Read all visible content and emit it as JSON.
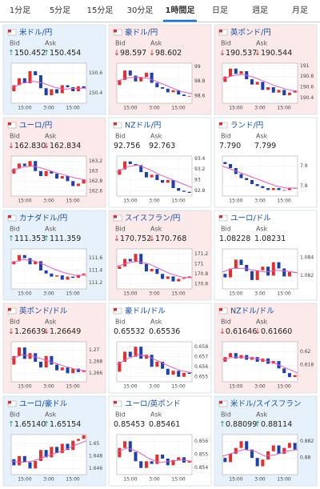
{
  "tabs": {
    "items": [
      "1分足",
      "5分足",
      "15分足",
      "30分足",
      "1時間足",
      "日足",
      "週足",
      "月足"
    ],
    "active": 4
  },
  "labels": {
    "bid": "Bid",
    "ask": "Ask"
  },
  "cards": [
    {
      "name": "米ドル/円",
      "trend": "up",
      "arrow": "↑",
      "bid": "150.452",
      "ask": "150.454",
      "chart": {
        "ylim": [
          150.3,
          150.7
        ],
        "yticks": [
          150.6,
          150.4
        ],
        "xticks": [
          "15:00",
          "3:00",
          "15:00"
        ],
        "closes": [
          150.42,
          150.48,
          150.55,
          150.5,
          150.62,
          150.58,
          150.45,
          150.38,
          150.44,
          150.4,
          150.48,
          150.46,
          150.42,
          150.47,
          150.45
        ],
        "ma": [
          150.45,
          150.5,
          150.52,
          150.5,
          150.46,
          150.44,
          150.45,
          150.45
        ]
      }
    },
    {
      "name": "豪ドル/円",
      "trend": "down",
      "arrow": "↓",
      "bid": "98.597",
      "ask": "98.602",
      "chart": {
        "ylim": [
          98.5,
          99.05
        ],
        "yticks": [
          99,
          98.8,
          98.6
        ],
        "xticks": [
          "15:00",
          "3:00",
          "15:00"
        ],
        "closes": [
          98.75,
          98.82,
          98.95,
          98.88,
          98.8,
          98.86,
          98.92,
          98.78,
          98.72,
          98.7,
          98.65,
          98.68,
          98.62,
          98.6,
          98.6
        ],
        "ma": [
          98.8,
          98.85,
          98.86,
          98.84,
          98.78,
          98.72,
          98.66,
          98.63
        ]
      }
    },
    {
      "name": "英ポンド/円",
      "trend": "down",
      "arrow": "↓",
      "bid": "190.537",
      "ask": "190.544",
      "chart": {
        "ylim": [
          190.3,
          191.05
        ],
        "yticks": [
          191,
          190.8,
          190.6,
          190.4
        ],
        "xticks": [
          "15:00",
          "3:00",
          "15:00"
        ],
        "closes": [
          190.7,
          190.8,
          190.95,
          190.85,
          190.9,
          190.75,
          190.65,
          190.7,
          190.55,
          190.6,
          190.5,
          190.55,
          190.45,
          190.5,
          190.54
        ],
        "ma": [
          190.75,
          190.82,
          190.84,
          190.78,
          190.7,
          190.62,
          190.56,
          190.52
        ]
      }
    },
    {
      "name": "ユーロ/円",
      "trend": "down",
      "arrow": "↓",
      "bid": "162.830",
      "ask": "162.834",
      "chart": {
        "ylim": [
          162.5,
          163.3
        ],
        "yticks": [
          163.2,
          163,
          162.8,
          162.6
        ],
        "xticks": [
          "15:00",
          "3:00",
          "15:00"
        ],
        "closes": [
          162.95,
          163.05,
          163.15,
          163.1,
          163.2,
          163.0,
          162.9,
          163.0,
          162.95,
          162.85,
          162.9,
          162.8,
          162.7,
          162.75,
          162.83
        ],
        "ma": [
          163.0,
          163.08,
          163.1,
          163.05,
          162.98,
          162.92,
          162.86,
          162.82
        ]
      }
    },
    {
      "name": "NZドル/円",
      "trend": "flat",
      "bid": "92.756",
      "ask": "92.763",
      "chart": {
        "ylim": [
          92.7,
          93.45
        ],
        "yticks": [
          93.4,
          93.2,
          93,
          92.8
        ],
        "xticks": [
          "15:00",
          "3:00",
          "15:00"
        ],
        "closes": [
          93.1,
          93.2,
          93.35,
          93.3,
          93.28,
          93.15,
          93.05,
          93.1,
          93.0,
          92.95,
          93.0,
          92.85,
          92.8,
          92.78,
          92.76
        ],
        "ma": [
          93.15,
          93.25,
          93.28,
          93.2,
          93.1,
          93.02,
          92.94,
          92.86
        ]
      }
    },
    {
      "name": "ランド/円",
      "trend": "flat",
      "bid": "7.790",
      "ask": "7.799",
      "chart": {
        "ylim": [
          7.75,
          7.95
        ],
        "yticks": [
          7.9,
          7.8
        ],
        "xticks": [
          "15:00",
          "3:00",
          "15:00"
        ],
        "closes": [
          7.92,
          7.91,
          7.89,
          7.86,
          7.84,
          7.83,
          7.81,
          7.8,
          7.79,
          7.78,
          7.79,
          7.78,
          7.78,
          7.79,
          7.79
        ],
        "ma": [
          7.9,
          7.88,
          7.86,
          7.84,
          7.82,
          7.8,
          7.79,
          7.79
        ]
      }
    },
    {
      "name": "カナダドル/円",
      "trend": "up",
      "arrow": "↑",
      "bid": "111.353",
      "ask": "111.359",
      "chart": {
        "ylim": [
          111.1,
          111.75
        ],
        "yticks": [
          111.6,
          111.4,
          111.2
        ],
        "xticks": [
          "15:00",
          "3:00",
          "15:00"
        ],
        "closes": [
          111.5,
          111.55,
          111.65,
          111.6,
          111.5,
          111.55,
          111.4,
          111.35,
          111.3,
          111.32,
          111.25,
          111.3,
          111.28,
          111.33,
          111.35
        ],
        "ma": [
          111.52,
          111.58,
          111.56,
          111.5,
          111.42,
          111.36,
          111.32,
          111.32
        ]
      }
    },
    {
      "name": "スイスフラン/円",
      "trend": "down",
      "arrow": "↓",
      "bid": "170.752",
      "ask": "170.768",
      "chart": {
        "ylim": [
          170.5,
          171.3
        ],
        "yticks": [
          171.2,
          171,
          170.8,
          170.6
        ],
        "xticks": [
          "15:00",
          "3:00",
          "15:00"
        ],
        "closes": [
          170.9,
          170.95,
          171.1,
          171.05,
          171.2,
          171.0,
          170.85,
          170.9,
          170.8,
          170.7,
          170.75,
          170.65,
          170.7,
          170.72,
          170.75
        ],
        "ma": [
          170.95,
          171.02,
          171.05,
          171.0,
          170.9,
          170.8,
          170.74,
          170.72
        ]
      }
    },
    {
      "name": "ユーロ/ドル",
      "trend": "flat",
      "bid": "1.08228",
      "ask": "1.08231",
      "chart": {
        "ylim": [
          1.0805,
          1.085
        ],
        "yticks": [
          1.084,
          1.082
        ],
        "xticks": [
          "15:00",
          "3:00",
          "15:00"
        ],
        "closes": [
          1.0822,
          1.0818,
          1.0828,
          1.0838,
          1.0832,
          1.0825,
          1.0815,
          1.0826,
          1.083,
          1.082,
          1.0835,
          1.0828,
          1.0819,
          1.0824,
          1.0823
        ],
        "ma": [
          1.0824,
          1.0828,
          1.0828,
          1.0826,
          1.0824,
          1.0826,
          1.0825,
          1.0823
        ]
      }
    },
    {
      "name": "英ポンド/ドル",
      "trend": "down",
      "arrow": "↓",
      "bid": "1.26639",
      "ask": "1.26649",
      "chart": {
        "ylim": [
          1.2645,
          1.2715
        ],
        "yticks": [
          1.27,
          1.268,
          1.266
        ],
        "xticks": [
          "15:00",
          "3:00",
          "15:00"
        ],
        "closes": [
          1.2675,
          1.269,
          1.2705,
          1.2685,
          1.2695,
          1.268,
          1.267,
          1.269,
          1.2675,
          1.2665,
          1.267,
          1.266,
          1.2668,
          1.2662,
          1.2664
        ],
        "ma": [
          1.2685,
          1.2692,
          1.269,
          1.2684,
          1.2678,
          1.2672,
          1.2667,
          1.2664
        ]
      }
    },
    {
      "name": "豪ドル/ドル",
      "trend": "flat",
      "bid": "0.65532",
      "ask": "0.65536",
      "chart": {
        "ylim": [
          0.6545,
          0.6585
        ],
        "yticks": [
          0.658,
          0.657,
          0.656,
          0.655
        ],
        "xticks": [
          "15:00",
          "3:00",
          "15:00"
        ],
        "closes": [
          0.6555,
          0.6565,
          0.6575,
          0.657,
          0.658,
          0.6568,
          0.6572,
          0.656,
          0.6565,
          0.6558,
          0.6552,
          0.6556,
          0.655,
          0.6554,
          0.6553
        ],
        "ma": [
          0.6562,
          0.6568,
          0.6572,
          0.657,
          0.6565,
          0.656,
          0.6556,
          0.6554
        ]
      }
    },
    {
      "name": "NZドル/ドル",
      "trend": "down",
      "arrow": "↓",
      "bid": "0.61646",
      "ask": "0.61660",
      "chart": {
        "ylim": [
          0.6155,
          0.6215
        ],
        "yticks": [
          0.62,
          0.618
        ],
        "xticks": [
          "15:00",
          "3:00",
          "15:00"
        ],
        "closes": [
          0.6185,
          0.6192,
          0.6198,
          0.619,
          0.6195,
          0.6188,
          0.6192,
          0.6185,
          0.619,
          0.6182,
          0.6186,
          0.6175,
          0.6168,
          0.6162,
          0.6165
        ],
        "ma": [
          0.6188,
          0.6192,
          0.6192,
          0.619,
          0.6187,
          0.6182,
          0.6175,
          0.6168
        ]
      }
    },
    {
      "name": "ユーロ/豪ドル",
      "trend": "up",
      "arrow": "↑",
      "bid": "1.65140",
      "ask": "1.65154",
      "chart": {
        "ylim": [
          1.645,
          1.6515
        ],
        "yticks": [
          1.65,
          1.648,
          1.646
        ],
        "xticks": [
          "15:00",
          "3:00",
          "15:00"
        ],
        "closes": [
          1.6475,
          1.6465,
          1.648,
          1.647,
          1.646,
          1.6472,
          1.649,
          1.6478,
          1.6495,
          1.6485,
          1.65,
          1.649,
          1.6505,
          1.6508,
          1.6514
        ],
        "ma": [
          1.6472,
          1.647,
          1.6472,
          1.6478,
          1.6484,
          1.649,
          1.6498,
          1.6505
        ]
      }
    },
    {
      "name": "ユーロ/英ポンド",
      "trend": "flat",
      "bid": "0.85453",
      "ask": "0.85461",
      "chart": {
        "ylim": [
          0.8535,
          0.8565
        ],
        "yticks": [
          0.856,
          0.855,
          0.854
        ],
        "xticks": [
          "15:00",
          "3:00",
          "15:00"
        ],
        "closes": [
          0.8548,
          0.8555,
          0.856,
          0.8552,
          0.8545,
          0.854,
          0.8545,
          0.8543,
          0.855,
          0.8547,
          0.8542,
          0.8546,
          0.8548,
          0.8544,
          0.8545
        ],
        "ma": [
          0.8552,
          0.8555,
          0.8552,
          0.8547,
          0.8544,
          0.8545,
          0.8546,
          0.8545
        ]
      }
    },
    {
      "name": "米ドル/スイスフラン",
      "trend": "up",
      "arrow": "↑",
      "bid": "0.88099",
      "ask": "0.88114",
      "chart": {
        "ylim": [
          0.878,
          0.8828
        ],
        "yticks": [
          0.882,
          0.88
        ],
        "xticks": [
          "15:00",
          "3:00",
          "15:00"
        ],
        "closes": [
          0.88,
          0.8795,
          0.8805,
          0.8812,
          0.882,
          0.881,
          0.88,
          0.879,
          0.8798,
          0.8808,
          0.8815,
          0.8805,
          0.8812,
          0.8818,
          0.881
        ],
        "ma": [
          0.8802,
          0.8806,
          0.881,
          0.8808,
          0.8802,
          0.8804,
          0.8808,
          0.881
        ]
      }
    }
  ]
}
